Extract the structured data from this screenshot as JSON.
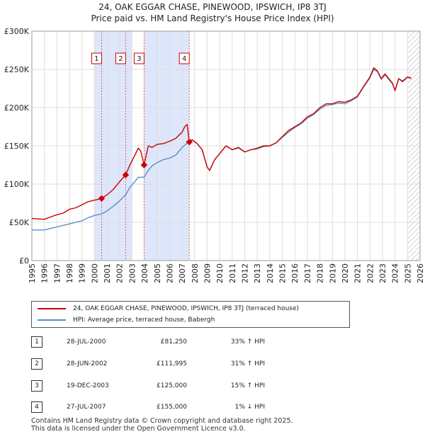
{
  "header": {
    "title_line1": "24, OAK EGGAR CHASE, PINEWOOD, IPSWICH, IP8 3TJ",
    "title_line2": "Price paid vs. HM Land Registry's House Price Index (HPI)"
  },
  "chart_data": {
    "type": "line",
    "xlim": [
      1995,
      2026
    ],
    "ylim": [
      0,
      300000
    ],
    "x_ticks": [
      1995,
      1996,
      1997,
      1998,
      1999,
      2000,
      2001,
      2002,
      2003,
      2004,
      2005,
      2006,
      2007,
      2008,
      2009,
      2010,
      2011,
      2012,
      2013,
      2014,
      2015,
      2016,
      2017,
      2018,
      2019,
      2020,
      2021,
      2022,
      2023,
      2024,
      2025,
      2026
    ],
    "x_tick_labels": [
      "1995",
      "1996",
      "1997",
      "1998",
      "1999",
      "2000",
      "2001",
      "2002",
      "2003",
      "2004",
      "2005",
      "2006",
      "2007",
      "2008",
      "2009",
      "2010",
      "2011",
      "2012",
      "2013",
      "2014",
      "2015",
      "2016",
      "2017",
      "2018",
      "2019",
      "2020",
      "2021",
      "2022",
      "2023",
      "2024",
      "2025",
      "2026"
    ],
    "y_ticks": [
      0,
      50000,
      100000,
      150000,
      200000,
      250000,
      300000
    ],
    "y_tick_labels": [
      "£0",
      "£50K",
      "£100K",
      "£150K",
      "£200K",
      "£250K",
      "£300K"
    ],
    "grid": true,
    "series": [
      {
        "name": "24, OAK EGGAR CHASE, PINEWOOD, IPSWICH, IP8 3TJ (terraced house)",
        "color": "#cc0000",
        "points": [
          [
            1995.0,
            55000
          ],
          [
            1996.0,
            54000
          ],
          [
            1996.5,
            57000
          ],
          [
            1997.0,
            60000
          ],
          [
            1997.5,
            62000
          ],
          [
            1998.0,
            67000
          ],
          [
            1998.5,
            69000
          ],
          [
            1999.0,
            73000
          ],
          [
            1999.5,
            77000
          ],
          [
            2000.0,
            79000
          ],
          [
            2000.57,
            81250
          ],
          [
            2001.0,
            86000
          ],
          [
            2001.5,
            93000
          ],
          [
            2002.0,
            103000
          ],
          [
            2002.49,
            111995
          ],
          [
            2002.8,
            124000
          ],
          [
            2003.2,
            137000
          ],
          [
            2003.5,
            147000
          ],
          [
            2003.7,
            143000
          ],
          [
            2003.96,
            125000
          ],
          [
            2004.3,
            150000
          ],
          [
            2004.6,
            148000
          ],
          [
            2005.0,
            152000
          ],
          [
            2005.5,
            153000
          ],
          [
            2006.0,
            156000
          ],
          [
            2006.5,
            160000
          ],
          [
            2007.0,
            168000
          ],
          [
            2007.2,
            175000
          ],
          [
            2007.4,
            178000
          ],
          [
            2007.57,
            155000
          ],
          [
            2007.8,
            158000
          ],
          [
            2008.2,
            153000
          ],
          [
            2008.6,
            145000
          ],
          [
            2009.0,
            122000
          ],
          [
            2009.2,
            118000
          ],
          [
            2009.6,
            132000
          ],
          [
            2010.0,
            140000
          ],
          [
            2010.5,
            150000
          ],
          [
            2011.0,
            145000
          ],
          [
            2011.5,
            148000
          ],
          [
            2012.0,
            142000
          ],
          [
            2012.5,
            145000
          ],
          [
            2013.0,
            147000
          ],
          [
            2013.5,
            150000
          ],
          [
            2014.0,
            150000
          ],
          [
            2014.5,
            154000
          ],
          [
            2015.0,
            162000
          ],
          [
            2015.5,
            170000
          ],
          [
            2016.0,
            175000
          ],
          [
            2016.5,
            180000
          ],
          [
            2017.0,
            188000
          ],
          [
            2017.5,
            192000
          ],
          [
            2018.0,
            200000
          ],
          [
            2018.5,
            205000
          ],
          [
            2019.0,
            205000
          ],
          [
            2019.5,
            208000
          ],
          [
            2020.0,
            207000
          ],
          [
            2020.5,
            210000
          ],
          [
            2021.0,
            215000
          ],
          [
            2021.5,
            228000
          ],
          [
            2022.0,
            240000
          ],
          [
            2022.3,
            252000
          ],
          [
            2022.6,
            248000
          ],
          [
            2022.9,
            238000
          ],
          [
            2023.2,
            244000
          ],
          [
            2023.5,
            238000
          ],
          [
            2023.8,
            232000
          ],
          [
            2024.0,
            222000
          ],
          [
            2024.3,
            238000
          ],
          [
            2024.6,
            234000
          ],
          [
            2025.0,
            240000
          ],
          [
            2025.3,
            238000
          ]
        ]
      },
      {
        "name": "HPI: Average price, terraced house, Babergh",
        "color": "#5b8fc7",
        "points": [
          [
            1995.0,
            40000
          ],
          [
            1996.0,
            40000
          ],
          [
            1996.5,
            42000
          ],
          [
            1997.0,
            44000
          ],
          [
            1997.5,
            46000
          ],
          [
            1998.0,
            48000
          ],
          [
            1998.5,
            50000
          ],
          [
            1999.0,
            52000
          ],
          [
            1999.5,
            56000
          ],
          [
            2000.0,
            59000
          ],
          [
            2000.57,
            61000
          ],
          [
            2001.0,
            65000
          ],
          [
            2001.5,
            71000
          ],
          [
            2002.0,
            78000
          ],
          [
            2002.49,
            86000
          ],
          [
            2002.8,
            95000
          ],
          [
            2003.2,
            103000
          ],
          [
            2003.5,
            109000
          ],
          [
            2003.96,
            109000
          ],
          [
            2004.3,
            118000
          ],
          [
            2004.6,
            124000
          ],
          [
            2005.0,
            128000
          ],
          [
            2005.5,
            132000
          ],
          [
            2006.0,
            134000
          ],
          [
            2006.5,
            138000
          ],
          [
            2007.0,
            148000
          ],
          [
            2007.3,
            152000
          ],
          [
            2007.57,
            157000
          ],
          [
            2007.8,
            158000
          ],
          [
            2008.2,
            153000
          ],
          [
            2008.6,
            145000
          ],
          [
            2009.0,
            122000
          ],
          [
            2009.2,
            118000
          ],
          [
            2009.6,
            132000
          ],
          [
            2010.0,
            140000
          ],
          [
            2010.5,
            150000
          ],
          [
            2011.0,
            145000
          ],
          [
            2011.5,
            147000
          ],
          [
            2012.0,
            142000
          ],
          [
            2012.5,
            145000
          ],
          [
            2013.0,
            146000
          ],
          [
            2013.5,
            149000
          ],
          [
            2014.0,
            150000
          ],
          [
            2014.5,
            154000
          ],
          [
            2015.0,
            161000
          ],
          [
            2015.5,
            168000
          ],
          [
            2016.0,
            174000
          ],
          [
            2016.5,
            179000
          ],
          [
            2017.0,
            186000
          ],
          [
            2017.5,
            191000
          ],
          [
            2018.0,
            198000
          ],
          [
            2018.5,
            203000
          ],
          [
            2019.0,
            204000
          ],
          [
            2019.5,
            206000
          ],
          [
            2020.0,
            205000
          ],
          [
            2020.5,
            209000
          ],
          [
            2021.0,
            214000
          ],
          [
            2021.5,
            227000
          ],
          [
            2022.0,
            239000
          ],
          [
            2022.3,
            250000
          ],
          [
            2022.6,
            247000
          ],
          [
            2022.9,
            237000
          ],
          [
            2023.2,
            243000
          ],
          [
            2023.5,
            237000
          ],
          [
            2023.8,
            231000
          ],
          [
            2024.0,
            223000
          ],
          [
            2024.3,
            238000
          ],
          [
            2024.6,
            235000
          ],
          [
            2025.0,
            240000
          ],
          [
            2025.3,
            239000
          ]
        ]
      }
    ],
    "sales": [
      {
        "label": "1",
        "x": 2000.57,
        "y": 81250
      },
      {
        "label": "2",
        "x": 2002.49,
        "y": 111995
      },
      {
        "label": "3",
        "x": 2003.96,
        "y": 125000
      },
      {
        "label": "4",
        "x": 2007.57,
        "y": 155000
      }
    ],
    "shaded_periods": [
      [
        2000.0,
        2003.0
      ],
      [
        2003.96,
        2007.57
      ]
    ],
    "hatched_region_from": 2025.0,
    "colors": {
      "sale_band": "#dde6fa",
      "sale_line": "#e06666",
      "grid": "#dddddd",
      "hatch": "#aaaaaa"
    }
  },
  "legend": {
    "items": [
      {
        "label": "24, OAK EGGAR CHASE, PINEWOOD, IPSWICH, IP8 3TJ (terraced house)",
        "color": "#cc0000"
      },
      {
        "label": "HPI: Average price, terraced house, Babergh",
        "color": "#5b8fc7"
      }
    ]
  },
  "transactions": [
    {
      "num": "1",
      "date": "28-JUL-2000",
      "price": "£81,250",
      "hpi": "33% ↑ HPI"
    },
    {
      "num": "2",
      "date": "28-JUN-2002",
      "price": "£111,995",
      "hpi": "31% ↑ HPI"
    },
    {
      "num": "3",
      "date": "19-DEC-2003",
      "price": "£125,000",
      "hpi": "15% ↑ HPI"
    },
    {
      "num": "4",
      "date": "27-JUL-2007",
      "price": "£155,000",
      "hpi": "1% ↓ HPI"
    }
  ],
  "footer": {
    "line1": "Contains HM Land Registry data © Crown copyright and database right 2025.",
    "line2": "This data is licensed under the Open Government Licence v3.0."
  }
}
